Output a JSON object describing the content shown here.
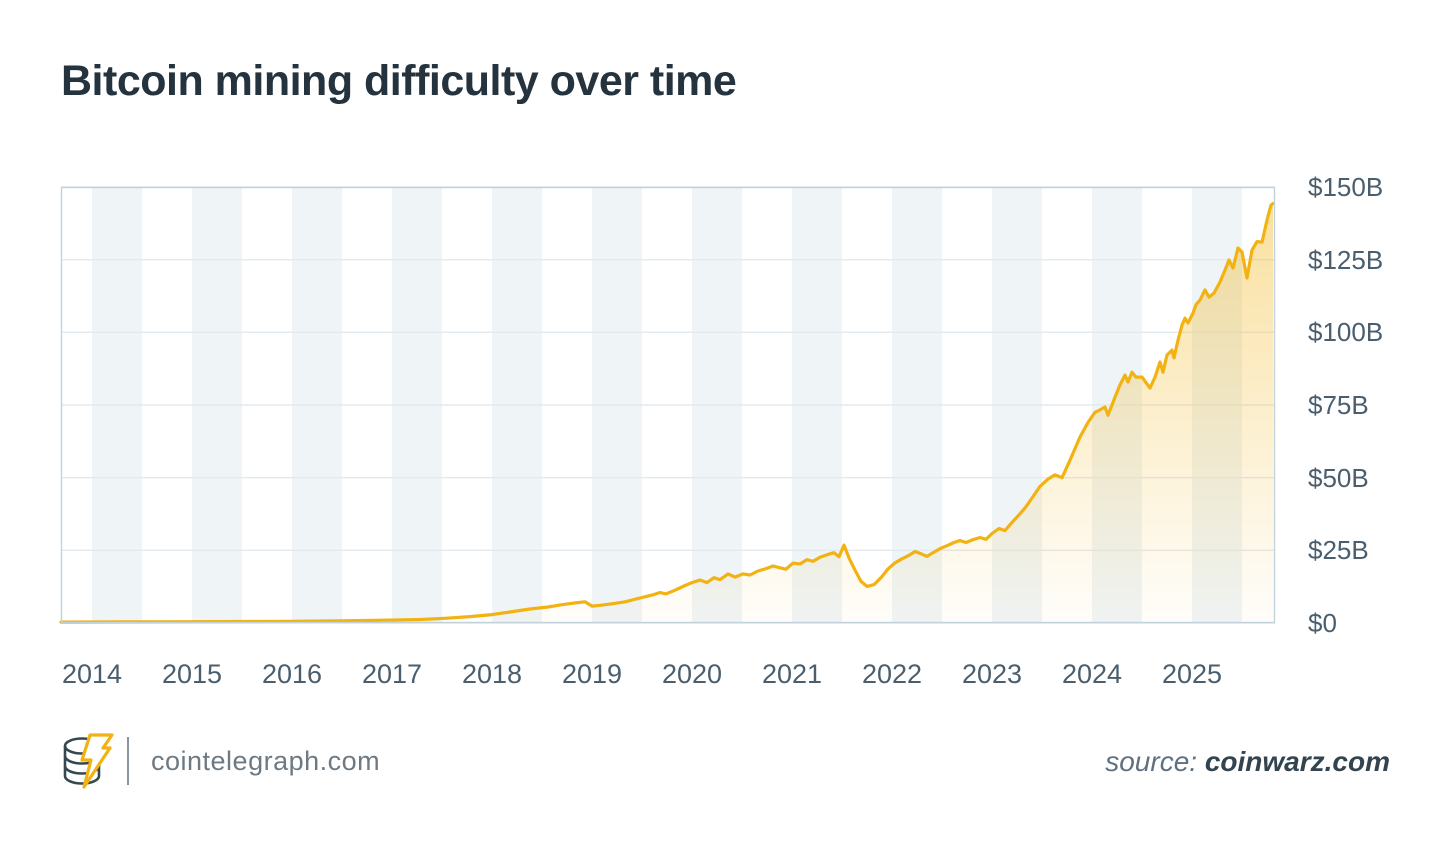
{
  "title": "Bitcoin mining difficulty over time",
  "footer": {
    "brand": "cointelegraph.com",
    "source_label": "source:",
    "source_value": "coinwarz.com",
    "logo_icon": "cointelegraph-coin-stack-lightning-logo"
  },
  "colors": {
    "accent_line": "#F2B211",
    "area_fill_top": "rgba(242,178,17,0.40)",
    "area_fill_bottom": "rgba(242,178,17,0.02)",
    "title_text": "#24333E",
    "axis_text": "#4A5E6E",
    "gridline": "#E2EAEF",
    "plot_border": "#C2D2DB",
    "stripe": "#EFF4F6",
    "footer_text": "#6E7A83",
    "source_value_text": "#33444F"
  },
  "chart_data": {
    "type": "area",
    "title": "Bitcoin mining difficulty over time",
    "xlabel": "",
    "ylabel": "",
    "xlim": [
      2013.69,
      2025.83
    ],
    "ylim": [
      0,
      150
    ],
    "grid": "horizontal",
    "legend": "none",
    "background_stripes": "alternating half-year vertical bands starting at each year tick",
    "y_ticks": [
      {
        "value": 0,
        "label": "$0"
      },
      {
        "value": 25,
        "label": "$25B"
      },
      {
        "value": 50,
        "label": "$50B"
      },
      {
        "value": 75,
        "label": "$75B"
      },
      {
        "value": 100,
        "label": "$100B"
      },
      {
        "value": 125,
        "label": "$125B"
      },
      {
        "value": 150,
        "label": "$150B"
      }
    ],
    "x_ticks": [
      {
        "value": 2014,
        "label": "2014"
      },
      {
        "value": 2015,
        "label": "2015"
      },
      {
        "value": 2016,
        "label": "2016"
      },
      {
        "value": 2017,
        "label": "2017"
      },
      {
        "value": 2018,
        "label": "2018"
      },
      {
        "value": 2019,
        "label": "2019"
      },
      {
        "value": 2020,
        "label": "2020"
      },
      {
        "value": 2021,
        "label": "2021"
      },
      {
        "value": 2022,
        "label": "2022"
      },
      {
        "value": 2023,
        "label": "2023"
      },
      {
        "value": 2024,
        "label": "2024"
      },
      {
        "value": 2025,
        "label": "2025"
      }
    ],
    "series": [
      {
        "name": "Bitcoin mining difficulty ($B)",
        "points": [
          [
            2013.69,
            0.3
          ],
          [
            2014.0,
            0.35
          ],
          [
            2014.58,
            0.4
          ],
          [
            2015.0,
            0.45
          ],
          [
            2015.58,
            0.5
          ],
          [
            2016.0,
            0.6
          ],
          [
            2016.48,
            0.75
          ],
          [
            2017.0,
            1.0
          ],
          [
            2017.28,
            1.2
          ],
          [
            2017.53,
            1.6
          ],
          [
            2017.78,
            2.2
          ],
          [
            2018.0,
            2.9
          ],
          [
            2018.18,
            3.8
          ],
          [
            2018.38,
            4.8
          ],
          [
            2018.56,
            5.5
          ],
          [
            2018.7,
            6.3
          ],
          [
            2018.83,
            6.9
          ],
          [
            2018.93,
            7.3
          ],
          [
            2019.0,
            5.8
          ],
          [
            2019.08,
            6.1
          ],
          [
            2019.2,
            6.6
          ],
          [
            2019.33,
            7.3
          ],
          [
            2019.48,
            8.6
          ],
          [
            2019.6,
            9.6
          ],
          [
            2019.68,
            10.5
          ],
          [
            2019.74,
            10.0
          ],
          [
            2019.83,
            11.3
          ],
          [
            2019.93,
            12.9
          ],
          [
            2020.0,
            13.9
          ],
          [
            2020.08,
            14.8
          ],
          [
            2020.15,
            13.9
          ],
          [
            2020.22,
            15.6
          ],
          [
            2020.28,
            14.9
          ],
          [
            2020.36,
            16.9
          ],
          [
            2020.43,
            15.8
          ],
          [
            2020.51,
            16.9
          ],
          [
            2020.58,
            16.5
          ],
          [
            2020.66,
            17.9
          ],
          [
            2020.74,
            18.7
          ],
          [
            2020.81,
            19.6
          ],
          [
            2020.88,
            19.0
          ],
          [
            2020.94,
            18.5
          ],
          [
            2021.01,
            20.6
          ],
          [
            2021.08,
            20.3
          ],
          [
            2021.15,
            21.8
          ],
          [
            2021.21,
            21.2
          ],
          [
            2021.28,
            22.6
          ],
          [
            2021.35,
            23.5
          ],
          [
            2021.42,
            24.2
          ],
          [
            2021.47,
            22.8
          ],
          [
            2021.52,
            26.8
          ],
          [
            2021.57,
            22.4
          ],
          [
            2021.63,
            18.2
          ],
          [
            2021.69,
            14.3
          ],
          [
            2021.75,
            12.6
          ],
          [
            2021.82,
            13.2
          ],
          [
            2021.89,
            15.6
          ],
          [
            2021.96,
            18.6
          ],
          [
            2022.03,
            20.7
          ],
          [
            2022.1,
            22.1
          ],
          [
            2022.17,
            23.3
          ],
          [
            2022.23,
            24.6
          ],
          [
            2022.29,
            23.8
          ],
          [
            2022.35,
            22.9
          ],
          [
            2022.41,
            24.2
          ],
          [
            2022.48,
            25.6
          ],
          [
            2022.55,
            26.6
          ],
          [
            2022.62,
            27.7
          ],
          [
            2022.68,
            28.4
          ],
          [
            2022.74,
            27.7
          ],
          [
            2022.81,
            28.7
          ],
          [
            2022.88,
            29.4
          ],
          [
            2022.94,
            28.8
          ],
          [
            2023.0,
            30.8
          ],
          [
            2023.07,
            32.5
          ],
          [
            2023.13,
            31.8
          ],
          [
            2023.2,
            34.6
          ],
          [
            2023.27,
            37.2
          ],
          [
            2023.34,
            40.0
          ],
          [
            2023.41,
            43.5
          ],
          [
            2023.48,
            47.0
          ],
          [
            2023.56,
            49.5
          ],
          [
            2023.63,
            51.0
          ],
          [
            2023.7,
            50.0
          ],
          [
            2023.78,
            56.0
          ],
          [
            2023.88,
            64.0
          ],
          [
            2023.96,
            69.0
          ],
          [
            2024.03,
            72.5
          ],
          [
            2024.08,
            73.3
          ],
          [
            2024.13,
            74.3
          ],
          [
            2024.16,
            71.5
          ],
          [
            2024.23,
            77.7
          ],
          [
            2024.28,
            81.9
          ],
          [
            2024.33,
            85.3
          ],
          [
            2024.36,
            82.9
          ],
          [
            2024.4,
            86.3
          ],
          [
            2024.44,
            84.6
          ],
          [
            2024.5,
            84.6
          ],
          [
            2024.58,
            80.8
          ],
          [
            2024.63,
            84.6
          ],
          [
            2024.68,
            89.8
          ],
          [
            2024.71,
            86.3
          ],
          [
            2024.75,
            92.2
          ],
          [
            2024.8,
            93.9
          ],
          [
            2024.82,
            91.2
          ],
          [
            2024.86,
            97.3
          ],
          [
            2024.9,
            102.5
          ],
          [
            2024.93,
            104.9
          ],
          [
            2024.96,
            103.2
          ],
          [
            2025.01,
            106.6
          ],
          [
            2025.04,
            109.5
          ],
          [
            2025.08,
            111.1
          ],
          [
            2025.13,
            114.6
          ],
          [
            2025.17,
            112.1
          ],
          [
            2025.22,
            113.5
          ],
          [
            2025.28,
            117.3
          ],
          [
            2025.33,
            121.4
          ],
          [
            2025.37,
            124.9
          ],
          [
            2025.41,
            122.1
          ],
          [
            2025.46,
            129.0
          ],
          [
            2025.5,
            127.6
          ],
          [
            2025.55,
            118.7
          ],
          [
            2025.6,
            128.3
          ],
          [
            2025.65,
            131.2
          ],
          [
            2025.7,
            131.0
          ],
          [
            2025.75,
            138.6
          ],
          [
            2025.79,
            143.8
          ],
          [
            2025.81,
            144.3
          ]
        ]
      }
    ]
  }
}
